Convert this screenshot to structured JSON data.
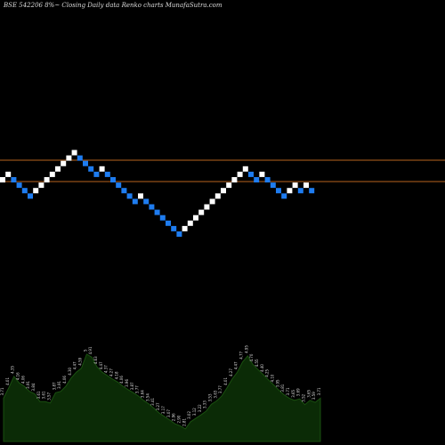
{
  "chart_data": {
    "type": "renko",
    "title": "BSE 542206  8%~  Closing Daily data  Renko  charts MunafaSutra.com",
    "bricks": [
      {
        "dir": "up"
      },
      {
        "dir": "up"
      },
      {
        "dir": "down"
      },
      {
        "dir": "down"
      },
      {
        "dir": "down"
      },
      {
        "dir": "down"
      },
      {
        "dir": "up"
      },
      {
        "dir": "up"
      },
      {
        "dir": "up"
      },
      {
        "dir": "up"
      },
      {
        "dir": "up"
      },
      {
        "dir": "up"
      },
      {
        "dir": "up"
      },
      {
        "dir": "up"
      },
      {
        "dir": "down"
      },
      {
        "dir": "down"
      },
      {
        "dir": "down"
      },
      {
        "dir": "down"
      },
      {
        "dir": "up"
      },
      {
        "dir": "down"
      },
      {
        "dir": "down"
      },
      {
        "dir": "down"
      },
      {
        "dir": "down"
      },
      {
        "dir": "down"
      },
      {
        "dir": "down"
      },
      {
        "dir": "up"
      },
      {
        "dir": "down"
      },
      {
        "dir": "down"
      },
      {
        "dir": "down"
      },
      {
        "dir": "down"
      },
      {
        "dir": "down"
      },
      {
        "dir": "down"
      },
      {
        "dir": "down"
      },
      {
        "dir": "up"
      },
      {
        "dir": "up"
      },
      {
        "dir": "up"
      },
      {
        "dir": "up"
      },
      {
        "dir": "up"
      },
      {
        "dir": "up"
      },
      {
        "dir": "up"
      },
      {
        "dir": "up"
      },
      {
        "dir": "up"
      },
      {
        "dir": "up"
      },
      {
        "dir": "up"
      },
      {
        "dir": "up"
      },
      {
        "dir": "down"
      },
      {
        "dir": "down"
      },
      {
        "dir": "up"
      },
      {
        "dir": "down"
      },
      {
        "dir": "down"
      },
      {
        "dir": "down"
      },
      {
        "dir": "down"
      },
      {
        "dir": "up"
      },
      {
        "dir": "up"
      },
      {
        "dir": "down"
      },
      {
        "dir": "up"
      },
      {
        "dir": "down"
      }
    ],
    "reference_lines": [
      180,
      204
    ],
    "volume_labels": [
      "3.71",
      "4.01",
      "4.35",
      "4.16",
      "4.06",
      "3.91",
      "3.84",
      "3.61",
      "3.61",
      "3.57",
      "3.87",
      "3.91",
      "4.06",
      "4.30",
      "4.47",
      "4.59",
      "5",
      "4.91",
      "4.63",
      "4.47",
      "4.37",
      "4.27",
      "4.18",
      "4.06",
      "3.96",
      "3.87",
      "3.77",
      "3.64",
      "3.54",
      "3.41",
      "3.27",
      "3.17",
      "3.07",
      "2.96",
      "2.90",
      "2.81",
      "3.02",
      "3.12",
      "3.22",
      "3.33",
      "3.53",
      "3.63",
      "3.77",
      "4.01",
      "4.27",
      "4.47",
      "4.77",
      "4.95",
      "4.70",
      "4.55",
      "4.40",
      "4.25",
      "4.10",
      "3.95",
      "3.81",
      "3.71",
      "3.65",
      "3.69",
      "3.52",
      "3.65",
      "3.59",
      "3.71"
    ],
    "colors": {
      "background": "#000000",
      "up_brick": "#ffffff",
      "down_brick": "#1e7cf0",
      "volume_fill": "#0b2b06",
      "volume_line": "#1a5010",
      "reference_line": "#b8641e",
      "text": "#dcdcdc"
    }
  }
}
